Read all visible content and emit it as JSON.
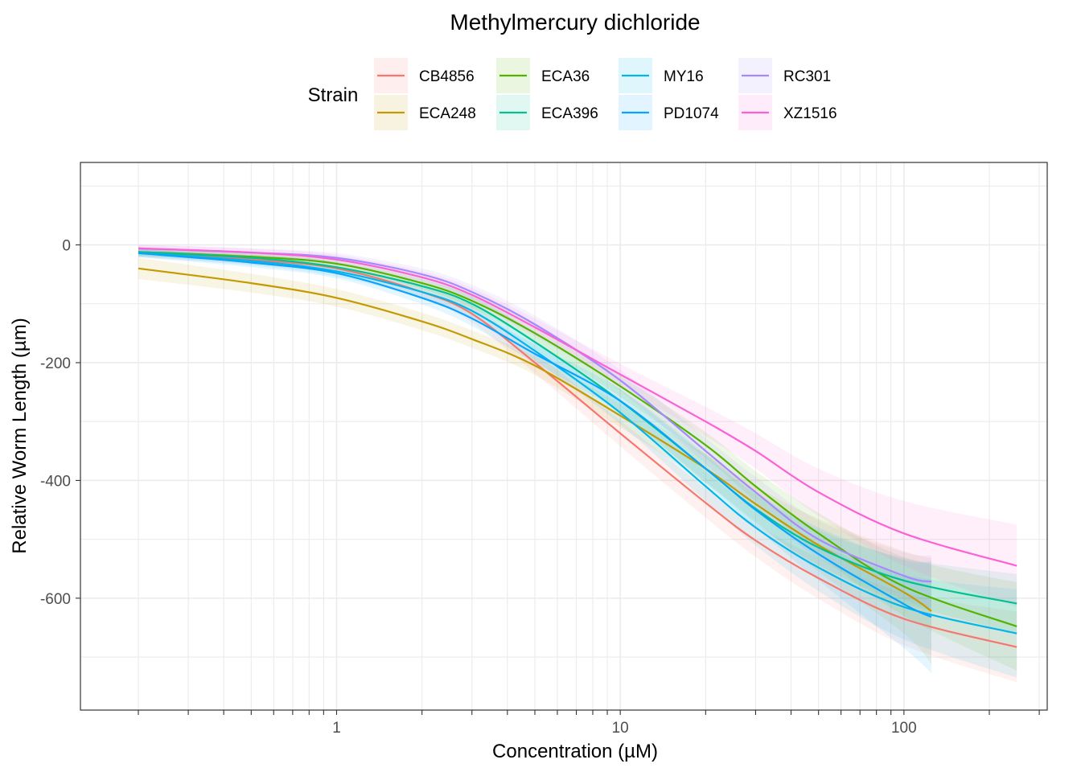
{
  "chart_data": {
    "type": "line",
    "title": "Methylmercury dichloride",
    "xlabel": "Concentration (µM)",
    "ylabel": "Relative Worm Length (µm)",
    "x_scale": "log10",
    "xlim": [
      0.125,
      320
    ],
    "ylim": [
      -790,
      140
    ],
    "x_ticks": [
      1,
      10,
      100
    ],
    "x_tick_labels": [
      "1",
      "10",
      "100"
    ],
    "y_ticks": [
      0,
      -200,
      -400,
      -600
    ],
    "y_tick_labels": [
      "0",
      "-200",
      "-400",
      "-600"
    ],
    "grid": true,
    "legend": {
      "title": "Strain",
      "position": "top"
    },
    "series": [
      {
        "name": "CB4856",
        "color": "#F8766D",
        "x": [
          0.2,
          0.5,
          1,
          2,
          3,
          5,
          10,
          20,
          30,
          50,
          100,
          250
        ],
        "y": [
          -12,
          -25,
          -40,
          -80,
          -117,
          -200,
          -320,
          -438,
          -502,
          -566,
          -635,
          -683
        ],
        "ci_halfwidth": [
          8,
          8,
          10,
          12,
          15,
          18,
          22,
          25,
          28,
          35,
          45,
          60
        ]
      },
      {
        "name": "ECA248",
        "color": "#C49A00",
        "x": [
          0.2,
          0.5,
          1,
          2,
          3,
          5,
          10,
          20,
          30,
          50,
          100,
          125
        ],
        "y": [
          -40,
          -65,
          -90,
          -130,
          -160,
          -205,
          -290,
          -380,
          -440,
          -510,
          -590,
          -622
        ],
        "ci_halfwidth": [
          18,
          16,
          15,
          15,
          15,
          16,
          20,
          25,
          30,
          45,
          70,
          90
        ]
      },
      {
        "name": "ECA36",
        "color": "#53B400",
        "x": [
          0.2,
          0.5,
          1,
          2,
          3,
          5,
          10,
          20,
          30,
          50,
          100,
          250
        ],
        "y": [
          -12,
          -20,
          -32,
          -65,
          -95,
          -150,
          -240,
          -340,
          -410,
          -490,
          -580,
          -648
        ],
        "ci_halfwidth": [
          6,
          7,
          8,
          10,
          12,
          15,
          18,
          22,
          26,
          35,
          50,
          75
        ]
      },
      {
        "name": "ECA396",
        "color": "#00C094",
        "x": [
          0.2,
          0.5,
          1,
          2,
          3,
          5,
          10,
          20,
          30,
          50,
          100,
          250
        ],
        "y": [
          -12,
          -22,
          -38,
          -70,
          -100,
          -165,
          -265,
          -380,
          -448,
          -514,
          -570,
          -609
        ],
        "ci_halfwidth": [
          7,
          8,
          9,
          11,
          13,
          16,
          20,
          22,
          25,
          30,
          38,
          50
        ]
      },
      {
        "name": "MY16",
        "color": "#00B6EB",
        "x": [
          0.2,
          0.5,
          1,
          2,
          3,
          5,
          10,
          20,
          30,
          50,
          100,
          250
        ],
        "y": [
          -14,
          -27,
          -45,
          -80,
          -112,
          -180,
          -285,
          -410,
          -480,
          -548,
          -615,
          -660
        ],
        "ci_halfwidth": [
          7,
          8,
          9,
          11,
          13,
          16,
          20,
          25,
          30,
          40,
          55,
          75
        ]
      },
      {
        "name": "PD1074",
        "color": "#06A4FF",
        "x": [
          0.2,
          0.5,
          1,
          2,
          3,
          5,
          10,
          20,
          30,
          50,
          100,
          125
        ],
        "y": [
          -14,
          -30,
          -48,
          -90,
          -125,
          -185,
          -265,
          -380,
          -450,
          -525,
          -610,
          -632
        ],
        "ci_halfwidth": [
          7,
          8,
          9,
          11,
          13,
          16,
          20,
          25,
          30,
          45,
          75,
          95
        ]
      },
      {
        "name": "RC301",
        "color": "#A58AFF",
        "x": [
          0.2,
          0.5,
          1,
          2,
          3,
          5,
          10,
          20,
          30,
          50,
          100,
          125
        ],
        "y": [
          -6,
          -13,
          -22,
          -50,
          -80,
          -135,
          -230,
          -350,
          -420,
          -500,
          -562,
          -572
        ],
        "ci_halfwidth": [
          6,
          7,
          8,
          10,
          12,
          15,
          18,
          22,
          26,
          32,
          40,
          45
        ]
      },
      {
        "name": "XZ1516",
        "color": "#FB61D7",
        "x": [
          0.2,
          0.5,
          1,
          2,
          3,
          5,
          10,
          20,
          30,
          50,
          100,
          250
        ],
        "y": [
          -6,
          -13,
          -25,
          -55,
          -85,
          -140,
          -220,
          -300,
          -350,
          -420,
          -490,
          -545
        ],
        "ci_halfwidth": [
          6,
          7,
          8,
          10,
          12,
          15,
          18,
          25,
          30,
          40,
          55,
          70
        ]
      }
    ]
  }
}
